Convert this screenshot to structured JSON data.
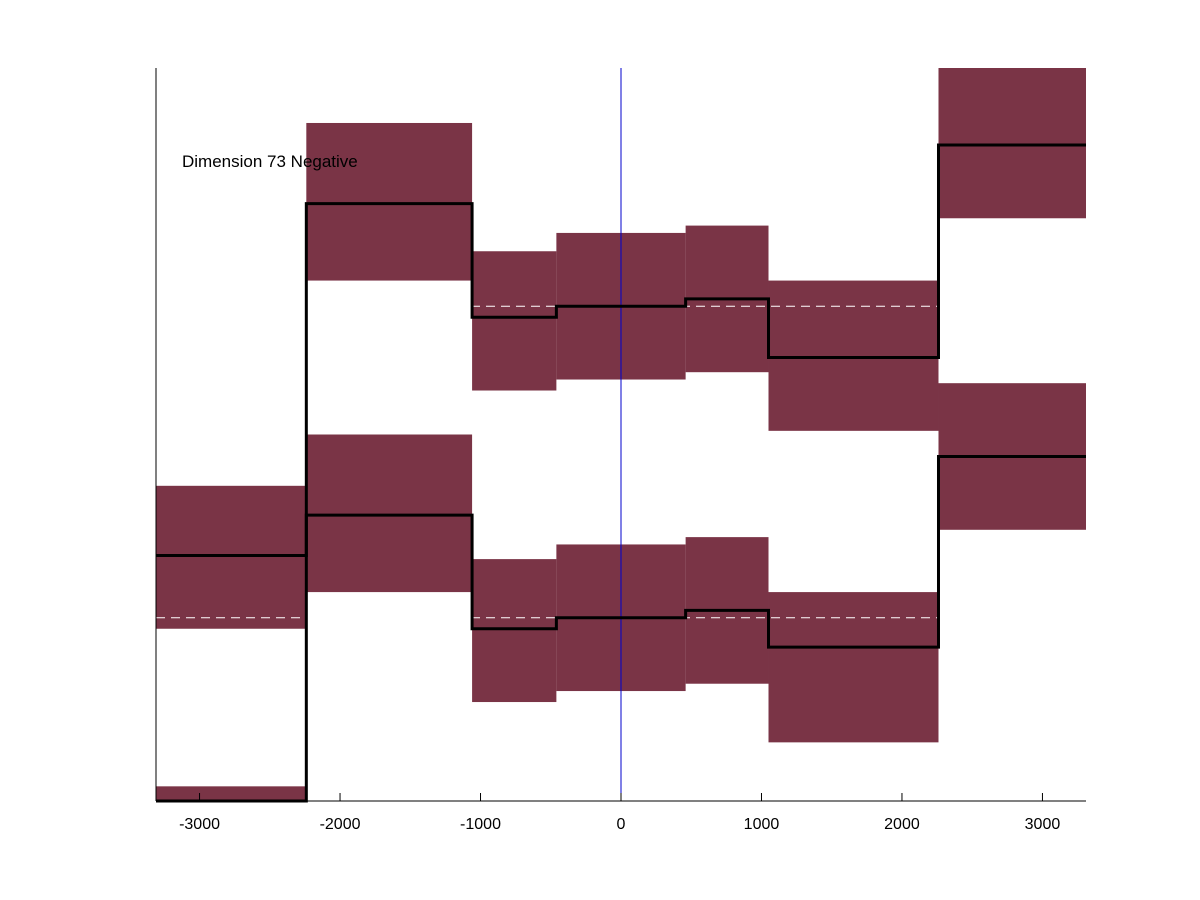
{
  "chart_data": {
    "type": "step",
    "annotation": "Dimension 73 Negative",
    "x_ticks": [
      -3000,
      -2000,
      -1000,
      0,
      1000,
      2000,
      3000
    ],
    "xlim": [
      -3310,
      3310
    ],
    "ylim": [
      0,
      1
    ],
    "grid": false,
    "zero_line_color": "#0000cc",
    "band_color": "#7a3446",
    "mean_line_color": "#000000",
    "reference_line_color": "#ffffff",
    "panels": [
      {
        "reference": 0.25,
        "segments": [
          {
            "x0": -3310,
            "x1": -2240,
            "value": 0.335,
            "low": 0.235,
            "high": 0.43
          },
          {
            "x0": -2240,
            "x1": -1060,
            "value": 0.39,
            "low": 0.285,
            "high": 0.5
          },
          {
            "x0": -1060,
            "x1": -460,
            "value": 0.235,
            "low": 0.135,
            "high": 0.33
          },
          {
            "x0": -460,
            "x1": 460,
            "value": 0.25,
            "low": 0.15,
            "high": 0.35
          },
          {
            "x0": 460,
            "x1": 1050,
            "value": 0.26,
            "low": 0.16,
            "high": 0.36
          },
          {
            "x0": 1050,
            "x1": 2260,
            "value": 0.21,
            "low": 0.08,
            "high": 0.285
          },
          {
            "x0": 2260,
            "x1": 3310,
            "value": 0.47,
            "low": 0.37,
            "high": 0.57
          }
        ]
      },
      {
        "reference": 0.675,
        "segments": [
          {
            "x0": -3310,
            "x1": -2240,
            "value": 0.0,
            "low": 0.0,
            "high": 0.02
          },
          {
            "x0": -2240,
            "x1": -1060,
            "value": 0.815,
            "low": 0.71,
            "high": 0.925
          },
          {
            "x0": -1060,
            "x1": -460,
            "value": 0.66,
            "low": 0.56,
            "high": 0.75
          },
          {
            "x0": -460,
            "x1": 460,
            "value": 0.675,
            "low": 0.575,
            "high": 0.775
          },
          {
            "x0": 460,
            "x1": 1050,
            "value": 0.685,
            "low": 0.585,
            "high": 0.785
          },
          {
            "x0": 1050,
            "x1": 2260,
            "value": 0.605,
            "low": 0.505,
            "high": 0.71
          },
          {
            "x0": 2260,
            "x1": 3310,
            "value": 0.895,
            "low": 0.795,
            "high": 1.0
          }
        ]
      }
    ]
  }
}
